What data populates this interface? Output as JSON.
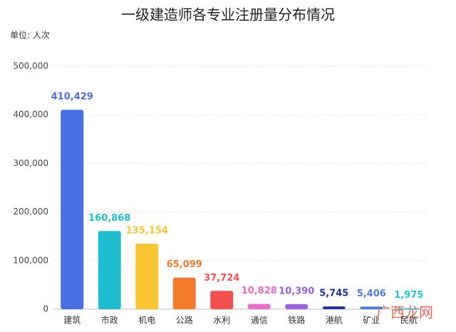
{
  "chart_data": {
    "type": "bar",
    "title": "一级建造师各专业注册量分布情况",
    "subtitle": "单位: 人次",
    "watermark": "广西龙网",
    "categories": [
      "建筑",
      "市政",
      "机电",
      "公路",
      "水利",
      "通信",
      "铁路",
      "港航",
      "矿业",
      "民航"
    ],
    "values": [
      410429,
      160868,
      135154,
      65099,
      37724,
      10828,
      10390,
      5745,
      5406,
      1975
    ],
    "value_labels": [
      "410,429",
      "160,868",
      "135,154",
      "65,099",
      "37,724",
      "10,828",
      "10,390",
      "5,745",
      "5,406",
      "1,975"
    ],
    "colors": [
      "#4a6fe3",
      "#1fbdd0",
      "#f7c531",
      "#f47a2c",
      "#f2514f",
      "#e96bcb",
      "#9b5fe0",
      "#1f2ea6",
      "#4c79df",
      "#21c6d6"
    ],
    "ylim": [
      0,
      500000
    ],
    "yticks": [
      0,
      {
        "value": 100000,
        "label": "100,000"
      },
      {
        "value": 200000,
        "label": "200,000"
      },
      {
        "value": 300000,
        "label": "300,000"
      },
      {
        "value": 400000,
        "label": "400,000"
      },
      {
        "value": 500000,
        "label": "500,000"
      }
    ],
    "grid": true
  }
}
